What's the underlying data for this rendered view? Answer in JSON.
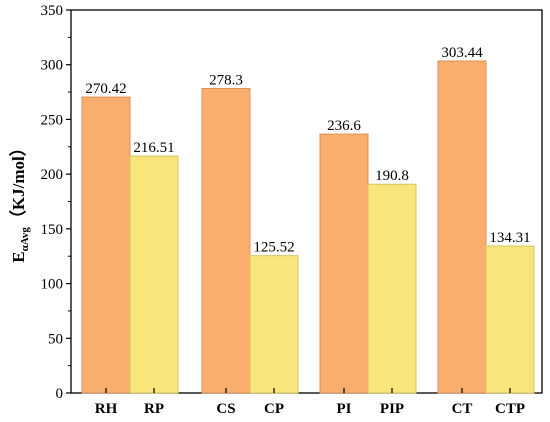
{
  "chart_data": {
    "type": "bar",
    "categories": [
      "RH",
      "RP",
      "CS",
      "CP",
      "PI",
      "PIP",
      "CT",
      "CTP"
    ],
    "values": [
      270.42,
      216.51,
      278.3,
      125.52,
      236.6,
      190.8,
      303.44,
      134.31
    ],
    "data_labels": [
      "270.42",
      "216.51",
      "278.3",
      "125.52",
      "236.6",
      "190.8",
      "303.44",
      "134.31"
    ],
    "ylabel": {
      "main": "E",
      "subscript": "αAvg",
      "unit": "（KJ/mol）"
    },
    "ylim": [
      0,
      350
    ],
    "yticks": [
      0,
      50,
      100,
      150,
      200,
      250,
      300,
      350
    ],
    "grid": false,
    "legend": "none",
    "colors": {
      "orange": "#f9ae6e",
      "orange_stroke": "#d9905a",
      "yellow": "#f8e57c",
      "yellow_stroke": "#d8c65e"
    },
    "bar_colors": [
      "orange",
      "yellow",
      "orange",
      "yellow",
      "orange",
      "yellow",
      "orange",
      "yellow"
    ]
  }
}
